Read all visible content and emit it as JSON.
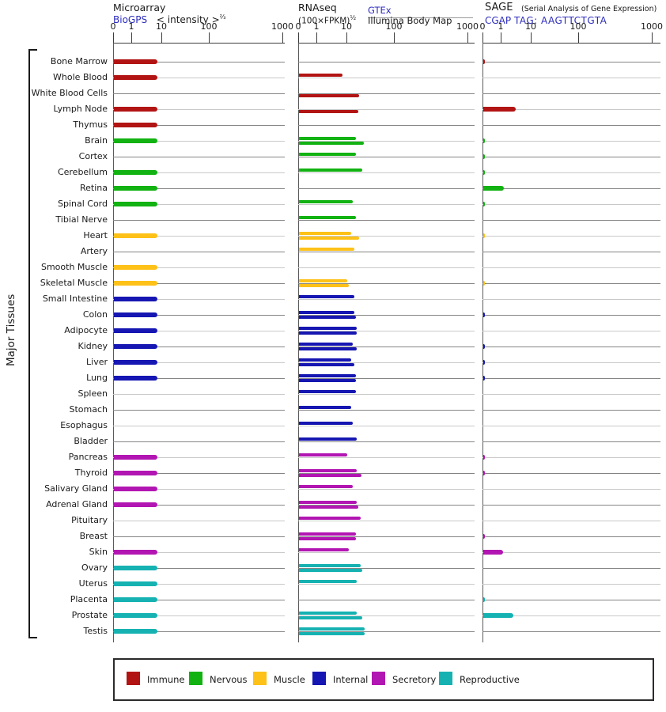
{
  "header": {
    "microarray": {
      "title": "Microarray",
      "link_label": "BioGPS",
      "scale_label": "< intensity >",
      "scale_superscript": "⅔"
    },
    "rnaseq": {
      "title": "RNAseq",
      "unit_label": "(100×FPKM)",
      "unit_superscript": "½",
      "link_label": "GTEx",
      "sublabel": "Illumina Body Map"
    },
    "sage": {
      "title": "SAGE",
      "subtitle": "(Serial Analysis of Gene Expression)",
      "link_label": "CGAP",
      "tag_label": "TAG: AAGTTCTGTA"
    }
  },
  "y_axis_label": "Major Tissues",
  "axis_ticks": [
    "0",
    "1",
    "10",
    "100",
    "1000"
  ],
  "legend": [
    {
      "label": "Immune",
      "color": "#b21414"
    },
    {
      "label": "Nervous",
      "color": "#12b212"
    },
    {
      "label": "Muscle",
      "color": "#fdc118"
    },
    {
      "label": "Internal",
      "color": "#1616b2"
    },
    {
      "label": "Secretory",
      "color": "#b216b2"
    },
    {
      "label": "Reproductive",
      "color": "#16b2b2"
    }
  ],
  "chart_data": {
    "type": "bar",
    "orientation": "horizontal",
    "x_scale": "compressed log, ticks at 0/1/10/100/1000, same for all three panels",
    "x_scale_ticks": [
      0,
      1,
      10,
      100,
      1000
    ],
    "categories": [
      "Bone Marrow",
      "Whole Blood",
      "White Blood Cells",
      "Lymph Node",
      "Thymus",
      "Brain",
      "Cortex",
      "Cerebellum",
      "Retina",
      "Spinal Cord",
      "Tibial Nerve",
      "Heart",
      "Artery",
      "Smooth Muscle",
      "Skeletal Muscle",
      "Small Intestine",
      "Colon",
      "Adipocyte",
      "Kidney",
      "Liver",
      "Lung",
      "Spleen",
      "Stomach",
      "Esophagus",
      "Bladder",
      "Pancreas",
      "Thyroid",
      "Salivary Gland",
      "Adrenal Gland",
      "Pituitary",
      "Breast",
      "Skin",
      "Ovary",
      "Uterus",
      "Placenta",
      "Prostate",
      "Testis"
    ],
    "category_groups": [
      "immune",
      "immune",
      "immune",
      "immune",
      "immune",
      "nervous",
      "nervous",
      "nervous",
      "nervous",
      "nervous",
      "nervous",
      "muscle",
      "muscle",
      "muscle",
      "muscle",
      "internal",
      "internal",
      "internal",
      "internal",
      "internal",
      "internal",
      "internal",
      "internal",
      "internal",
      "internal",
      "secretory",
      "secretory",
      "secretory",
      "secretory",
      "secretory",
      "secretory",
      "secretory",
      "reproductive",
      "reproductive",
      "reproductive",
      "reproductive",
      "reproductive"
    ],
    "group_colors": {
      "immune": "#b21414",
      "nervous": "#12b212",
      "muscle": "#fdc118",
      "internal": "#1616b2",
      "secretory": "#b216b2",
      "reproductive": "#16b2b2"
    },
    "panels": [
      {
        "name": "Microarray",
        "series": [
          {
            "name": "BioGPS",
            "values": [
              7,
              7,
              null,
              7,
              7,
              7,
              null,
              7,
              7,
              7,
              null,
              7,
              null,
              7,
              7,
              7,
              7,
              7,
              7,
              7,
              7,
              null,
              null,
              null,
              null,
              7,
              7,
              7,
              7,
              null,
              null,
              7,
              7,
              7,
              7,
              7,
              7
            ]
          }
        ]
      },
      {
        "name": "RNAseq",
        "series": [
          {
            "name": "GTEx",
            "values": [
              null,
              7,
              null,
              null,
              null,
              15,
              15,
              21,
              null,
              13,
              15,
              12,
              14,
              null,
              10,
              14,
              14,
              16,
              13,
              12,
              15,
              15,
              12,
              13,
              16,
              10,
              16,
              13,
              16,
              19,
              15,
              11,
              19,
              16,
              null,
              16,
              23
            ]
          },
          {
            "name": "Illumina Body Map",
            "values": [
              null,
              null,
              18,
              17,
              null,
              22,
              null,
              null,
              null,
              null,
              null,
              18,
              null,
              null,
              11,
              null,
              15,
              16,
              16,
              14,
              15,
              null,
              null,
              null,
              null,
              null,
              20,
              null,
              17,
              null,
              15,
              null,
              21,
              null,
              null,
              21,
              23
            ]
          }
        ]
      },
      {
        "name": "SAGE",
        "series": [
          {
            "name": "SAGE",
            "values": [
              0.1,
              null,
              null,
              3,
              null,
              0.1,
              0.1,
              0.1,
              1.2,
              0.1,
              null,
              0.1,
              null,
              null,
              0.1,
              null,
              0.1,
              null,
              0.1,
              0.1,
              0.1,
              null,
              null,
              null,
              null,
              0.1,
              0.1,
              null,
              null,
              null,
              0.1,
              1.1,
              null,
              null,
              0.1,
              2.5,
              null
            ]
          }
        ]
      }
    ]
  }
}
